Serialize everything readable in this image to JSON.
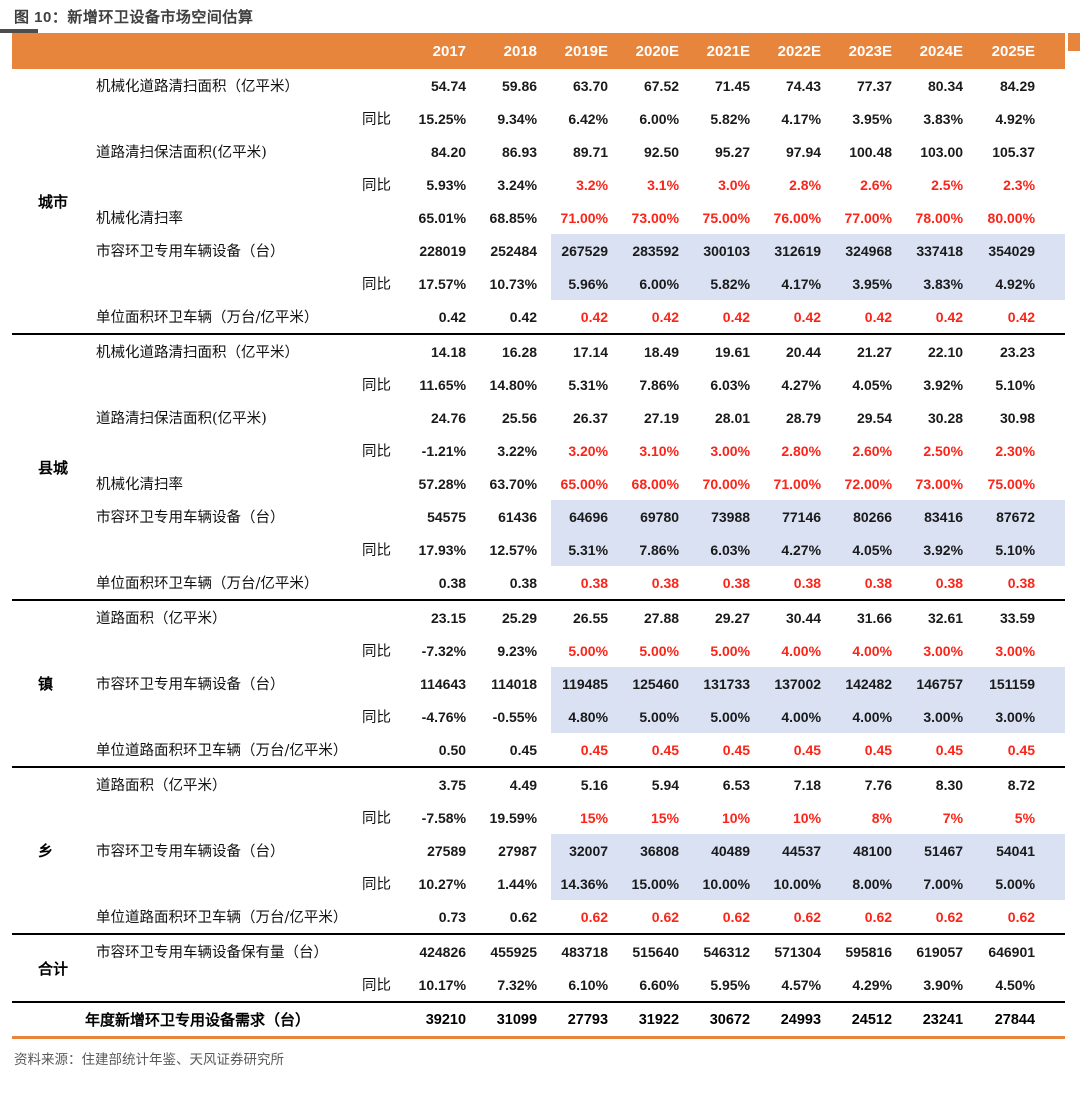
{
  "title": "图 10：新增环卫设备市场空间估算",
  "source": "资料来源：住建部统计年鉴、天风证券研究所",
  "colors": {
    "header_bg": "#E8853D",
    "forecast_red": "#FC2418",
    "highlight_bg": "#D9E1F2",
    "title_text": "#3F3F3F",
    "source_text": "#595959",
    "accent_rule": "#E8853D"
  },
  "chart_data": {
    "type": "table",
    "title": "新增环卫设备市场空间估算",
    "yoy_label": "同比",
    "columns": [
      "2017",
      "2018",
      "2019E",
      "2020E",
      "2021E",
      "2022E",
      "2023E",
      "2024E",
      "2025E"
    ],
    "groups": [
      {
        "id": "city",
        "name": "城市",
        "rows": [
          {
            "label": "机械化道路清扫面积（亿平米）",
            "sub": "",
            "values": [
              "54.74",
              "59.86",
              "63.70",
              "67.52",
              "71.45",
              "74.43",
              "77.37",
              "80.34",
              "84.29"
            ],
            "red_forecast": false,
            "highlight": false
          },
          {
            "label": "",
            "sub": "同比",
            "values": [
              "15.25%",
              "9.34%",
              "6.42%",
              "6.00%",
              "5.82%",
              "4.17%",
              "3.95%",
              "3.83%",
              "4.92%"
            ],
            "red_forecast": false,
            "highlight": false
          },
          {
            "label": "道路清扫保洁面积(亿平米)",
            "sub": "",
            "values": [
              "84.20",
              "86.93",
              "89.71",
              "92.50",
              "95.27",
              "97.94",
              "100.48",
              "103.00",
              "105.37"
            ],
            "red_forecast": false,
            "highlight": false
          },
          {
            "label": "",
            "sub": "同比",
            "values": [
              "5.93%",
              "3.24%",
              "3.2%",
              "3.1%",
              "3.0%",
              "2.8%",
              "2.6%",
              "2.5%",
              "2.3%"
            ],
            "red_forecast": true,
            "highlight": false
          },
          {
            "label": "机械化清扫率",
            "sub": "",
            "values": [
              "65.01%",
              "68.85%",
              "71.00%",
              "73.00%",
              "75.00%",
              "76.00%",
              "77.00%",
              "78.00%",
              "80.00%"
            ],
            "red_forecast": true,
            "highlight": false
          },
          {
            "label": "市容环卫专用车辆设备（台）",
            "sub": "",
            "values": [
              "228019",
              "252484",
              "267529",
              "283592",
              "300103",
              "312619",
              "324968",
              "337418",
              "354029"
            ],
            "red_forecast": false,
            "highlight": true
          },
          {
            "label": "",
            "sub": "同比",
            "values": [
              "17.57%",
              "10.73%",
              "5.96%",
              "6.00%",
              "5.82%",
              "4.17%",
              "3.95%",
              "3.83%",
              "4.92%"
            ],
            "red_forecast": false,
            "highlight": true
          },
          {
            "label": "单位面积环卫车辆（万台/亿平米）",
            "sub": "",
            "values": [
              "0.42",
              "0.42",
              "0.42",
              "0.42",
              "0.42",
              "0.42",
              "0.42",
              "0.42",
              "0.42"
            ],
            "red_forecast": true,
            "highlight": false
          }
        ]
      },
      {
        "id": "county",
        "name": "县城",
        "rows": [
          {
            "label": "机械化道路清扫面积（亿平米）",
            "sub": "",
            "values": [
              "14.18",
              "16.28",
              "17.14",
              "18.49",
              "19.61",
              "20.44",
              "21.27",
              "22.10",
              "23.23"
            ],
            "red_forecast": false,
            "highlight": false
          },
          {
            "label": "",
            "sub": "同比",
            "values": [
              "11.65%",
              "14.80%",
              "5.31%",
              "7.86%",
              "6.03%",
              "4.27%",
              "4.05%",
              "3.92%",
              "5.10%"
            ],
            "red_forecast": false,
            "highlight": false
          },
          {
            "label": "道路清扫保洁面积(亿平米)",
            "sub": "",
            "values": [
              "24.76",
              "25.56",
              "26.37",
              "27.19",
              "28.01",
              "28.79",
              "29.54",
              "30.28",
              "30.98"
            ],
            "red_forecast": false,
            "highlight": false
          },
          {
            "label": "",
            "sub": "同比",
            "values": [
              "-1.21%",
              "3.22%",
              "3.20%",
              "3.10%",
              "3.00%",
              "2.80%",
              "2.60%",
              "2.50%",
              "2.30%"
            ],
            "red_forecast": true,
            "highlight": false
          },
          {
            "label": "机械化清扫率",
            "sub": "",
            "values": [
              "57.28%",
              "63.70%",
              "65.00%",
              "68.00%",
              "70.00%",
              "71.00%",
              "72.00%",
              "73.00%",
              "75.00%"
            ],
            "red_forecast": true,
            "highlight": false
          },
          {
            "label": "市容环卫专用车辆设备（台）",
            "sub": "",
            "values": [
              "54575",
              "61436",
              "64696",
              "69780",
              "73988",
              "77146",
              "80266",
              "83416",
              "87672"
            ],
            "red_forecast": false,
            "highlight": true
          },
          {
            "label": "",
            "sub": "同比",
            "values": [
              "17.93%",
              "12.57%",
              "5.31%",
              "7.86%",
              "6.03%",
              "4.27%",
              "4.05%",
              "3.92%",
              "5.10%"
            ],
            "red_forecast": false,
            "highlight": true
          },
          {
            "label": "单位面积环卫车辆（万台/亿平米）",
            "sub": "",
            "values": [
              "0.38",
              "0.38",
              "0.38",
              "0.38",
              "0.38",
              "0.38",
              "0.38",
              "0.38",
              "0.38"
            ],
            "red_forecast": true,
            "highlight": false
          }
        ]
      },
      {
        "id": "town",
        "name": "镇",
        "rows": [
          {
            "label": "道路面积（亿平米）",
            "sub": "",
            "values": [
              "23.15",
              "25.29",
              "26.55",
              "27.88",
              "29.27",
              "30.44",
              "31.66",
              "32.61",
              "33.59"
            ],
            "red_forecast": false,
            "highlight": false
          },
          {
            "label": "",
            "sub": "同比",
            "values": [
              "-7.32%",
              "9.23%",
              "5.00%",
              "5.00%",
              "5.00%",
              "4.00%",
              "4.00%",
              "3.00%",
              "3.00%"
            ],
            "red_forecast": true,
            "highlight": false
          },
          {
            "label": "市容环卫专用车辆设备（台）",
            "sub": "",
            "values": [
              "114643",
              "114018",
              "119485",
              "125460",
              "131733",
              "137002",
              "142482",
              "146757",
              "151159"
            ],
            "red_forecast": false,
            "highlight": true
          },
          {
            "label": "",
            "sub": "同比",
            "values": [
              "-4.76%",
              "-0.55%",
              "4.80%",
              "5.00%",
              "5.00%",
              "4.00%",
              "4.00%",
              "3.00%",
              "3.00%"
            ],
            "red_forecast": false,
            "highlight": true
          },
          {
            "label": "单位道路面积环卫车辆（万台/亿平米）",
            "sub": "",
            "values": [
              "0.50",
              "0.45",
              "0.45",
              "0.45",
              "0.45",
              "0.45",
              "0.45",
              "0.45",
              "0.45"
            ],
            "red_forecast": true,
            "highlight": false
          }
        ]
      },
      {
        "id": "township",
        "name": "乡",
        "rows": [
          {
            "label": "道路面积（亿平米）",
            "sub": "",
            "values": [
              "3.75",
              "4.49",
              "5.16",
              "5.94",
              "6.53",
              "7.18",
              "7.76",
              "8.30",
              "8.72"
            ],
            "red_forecast": false,
            "highlight": false
          },
          {
            "label": "",
            "sub": "同比",
            "values": [
              "-7.58%",
              "19.59%",
              "15%",
              "15%",
              "10%",
              "10%",
              "8%",
              "7%",
              "5%"
            ],
            "red_forecast": true,
            "highlight": false
          },
          {
            "label": "市容环卫专用车辆设备（台）",
            "sub": "",
            "values": [
              "27589",
              "27987",
              "32007",
              "36808",
              "40489",
              "44537",
              "48100",
              "51467",
              "54041"
            ],
            "red_forecast": false,
            "highlight": true
          },
          {
            "label": "",
            "sub": "同比",
            "values": [
              "10.27%",
              "1.44%",
              "14.36%",
              "15.00%",
              "10.00%",
              "10.00%",
              "8.00%",
              "7.00%",
              "5.00%"
            ],
            "red_forecast": false,
            "highlight": true
          },
          {
            "label": "单位道路面积环卫车辆（万台/亿平米）",
            "sub": "",
            "values": [
              "0.73",
              "0.62",
              "0.62",
              "0.62",
              "0.62",
              "0.62",
              "0.62",
              "0.62",
              "0.62"
            ],
            "red_forecast": true,
            "highlight": false
          }
        ]
      },
      {
        "id": "total",
        "name": "合计",
        "rows": [
          {
            "label": "市容环卫专用车辆设备保有量（台）",
            "sub": "",
            "values": [
              "424826",
              "455925",
              "483718",
              "515640",
              "546312",
              "571304",
              "595816",
              "619057",
              "646901"
            ],
            "red_forecast": false,
            "highlight": false
          },
          {
            "label": "",
            "sub": "同比",
            "values": [
              "10.17%",
              "7.32%",
              "6.10%",
              "6.60%",
              "5.95%",
              "4.57%",
              "4.29%",
              "3.90%",
              "4.50%"
            ],
            "red_forecast": false,
            "highlight": false
          }
        ]
      }
    ],
    "final_row": {
      "label": "年度新增环卫专用设备需求（台）",
      "values": [
        "39210",
        "31099",
        "27793",
        "31922",
        "30672",
        "24993",
        "24512",
        "23241",
        "27844"
      ]
    }
  }
}
